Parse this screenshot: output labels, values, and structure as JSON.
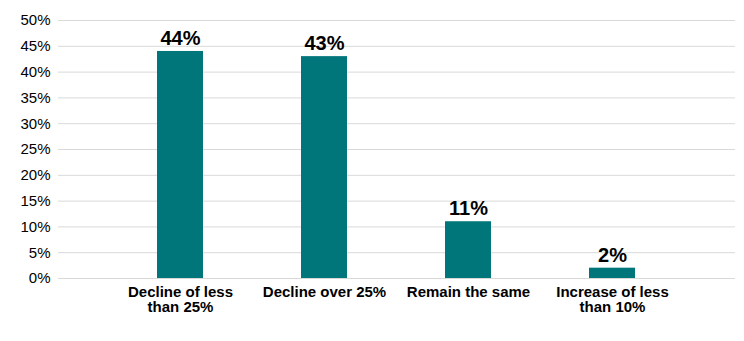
{
  "chart_data": {
    "type": "bar",
    "categories": [
      "Decline of less than 25%",
      "Decline over 25%",
      "Remain the same",
      "Increase of less than 10%"
    ],
    "values": [
      44,
      43,
      11,
      2
    ],
    "value_labels": [
      "44%",
      "43%",
      "11%",
      "2%"
    ],
    "color": "#00767b",
    "ylim": [
      0,
      50
    ],
    "yticks": [
      {
        "value": 0,
        "label": "0%"
      },
      {
        "value": 5,
        "label": "5%"
      },
      {
        "value": 10,
        "label": "10%"
      },
      {
        "value": 15,
        "label": "15%"
      },
      {
        "value": 20,
        "label": "20%"
      },
      {
        "value": 25,
        "label": "25%"
      },
      {
        "value": 30,
        "label": "30%"
      },
      {
        "value": 35,
        "label": "35%"
      },
      {
        "value": 40,
        "label": "40%"
      },
      {
        "value": 45,
        "label": "45%"
      },
      {
        "value": 50,
        "label": "50%"
      }
    ],
    "grid": true,
    "data_labels": true
  }
}
